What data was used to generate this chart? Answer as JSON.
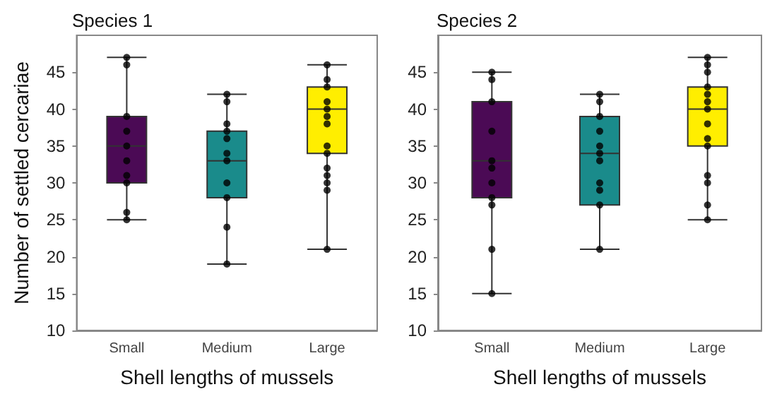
{
  "chart_data": [
    {
      "type": "box",
      "title": "Species 1",
      "xlabel": "Shell lengths of mussels",
      "ylabel": "Number of settled cercariae",
      "categories": [
        "Small",
        "Medium",
        "Large"
      ],
      "colors": [
        "#4b0a55",
        "#1a8b8b",
        "#ffee00"
      ],
      "ylim": [
        10,
        50
      ],
      "yticks": [
        10,
        15,
        20,
        25,
        30,
        35,
        40,
        45
      ],
      "marker": "circle",
      "boxes": [
        {
          "low": 25,
          "q1": 30,
          "median": 35,
          "q3": 39,
          "high": 47
        },
        {
          "low": 19,
          "q1": 28,
          "median": 33,
          "q3": 37,
          "high": 42
        },
        {
          "low": 21,
          "q1": 34,
          "median": 40,
          "q3": 43,
          "high": 46
        }
      ],
      "series": [
        {
          "type": "scatter",
          "color": "#000000",
          "x": [
            "Small",
            "Small",
            "Small",
            "Small",
            "Small",
            "Small",
            "Small",
            "Small",
            "Small",
            "Small",
            "Medium",
            "Medium",
            "Medium",
            "Medium",
            "Medium",
            "Medium",
            "Medium",
            "Medium",
            "Medium",
            "Medium",
            "Medium",
            "Large",
            "Large",
            "Large",
            "Large",
            "Large",
            "Large",
            "Large",
            "Large",
            "Large",
            "Large",
            "Large",
            "Large",
            "Large",
            "Large"
          ],
          "values": [
            47,
            46,
            39,
            37,
            35,
            33,
            31,
            30,
            26,
            25,
            42,
            41,
            38,
            37,
            36,
            34,
            33,
            30,
            28,
            24,
            19,
            46,
            44,
            43,
            41,
            40,
            39,
            38,
            35,
            34,
            32,
            31,
            30,
            29,
            21
          ]
        }
      ]
    },
    {
      "type": "box",
      "title": "Species 2",
      "xlabel": "Shell lengths of mussels",
      "categories": [
        "Small",
        "Medium",
        "Large"
      ],
      "colors": [
        "#4b0a55",
        "#1a8b8b",
        "#ffee00"
      ],
      "ylim": [
        10,
        50
      ],
      "yticks": [
        10,
        15,
        20,
        25,
        30,
        35,
        40,
        45
      ],
      "marker": "circle",
      "boxes": [
        {
          "low": 15,
          "q1": 28,
          "median": 33,
          "q3": 41,
          "high": 45
        },
        {
          "low": 21,
          "q1": 27,
          "median": 34,
          "q3": 39,
          "high": 42
        },
        {
          "low": 25,
          "q1": 35,
          "median": 40,
          "q3": 43,
          "high": 47
        }
      ],
      "series": [
        {
          "type": "scatter",
          "color": "#000000",
          "x": [
            "Small",
            "Small",
            "Small",
            "Small",
            "Small",
            "Small",
            "Small",
            "Small",
            "Small",
            "Small",
            "Small",
            "Medium",
            "Medium",
            "Medium",
            "Medium",
            "Medium",
            "Medium",
            "Medium",
            "Medium",
            "Medium",
            "Medium",
            "Medium",
            "Large",
            "Large",
            "Large",
            "Large",
            "Large",
            "Large",
            "Large",
            "Large",
            "Large",
            "Large",
            "Large",
            "Large",
            "Large",
            "Large"
          ],
          "values": [
            45,
            44,
            41,
            37,
            33,
            32,
            30,
            28,
            27,
            21,
            15,
            42,
            41,
            39,
            37,
            35,
            34,
            33,
            30,
            29,
            27,
            21,
            47,
            46,
            45,
            43,
            42,
            41,
            40,
            38,
            36,
            35,
            31,
            30,
            27,
            25
          ]
        }
      ]
    }
  ]
}
